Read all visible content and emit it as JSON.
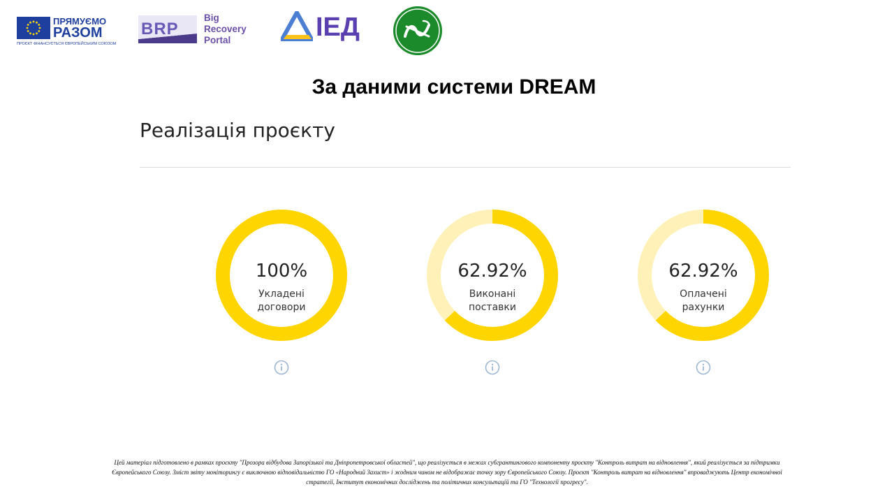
{
  "logos": {
    "eu": {
      "line1": "ПРЯМУЄМО",
      "line2": "РАЗОМ",
      "subtitle": "ПРОЄКТ ФІНАНСУЄТЬСЯ ЄВРОПЕЙСЬКИМ СОЮЗОМ"
    },
    "brp": {
      "letters": "BRP",
      "line1": "Big",
      "line2": "Recovery",
      "line3": "Portal"
    },
    "ied": {
      "letters": "ІЕД"
    }
  },
  "heading": "За даними системи DREAM",
  "section_title": "Реалізація проєкту",
  "colors": {
    "accent": "#FFD500",
    "track": "#FFF1B8",
    "info_icon": "#9DB6D3"
  },
  "metrics": [
    {
      "value": "100%",
      "label_line1": "Укладені",
      "label_line2": "договори",
      "fraction": 1.0,
      "icon": "info-icon"
    },
    {
      "value": "62.92%",
      "label_line1": "Виконані",
      "label_line2": "поставки",
      "fraction": 0.6292,
      "icon": "info-icon"
    },
    {
      "value": "62.92%",
      "label_line1": "Оплачені",
      "label_line2": "рахунки",
      "fraction": 0.6292,
      "icon": "info-icon"
    }
  ],
  "footer": {
    "line1": "Цей матеріал підготовлено в рамках проєкту \"Прозора відбудова Запорізької та Дніпропетровської областей\", що реалізується в межах субгрантингового компоненту проєкту \"Контроль витрат на відновлення\", який реалізується за підтримки",
    "line2": "Європейського Союзу. Зміст звіту моніторингу є виключною відповідальністю ГО «Народний Захист» і жодним чином не відображає точку зору Європейського Союзу. Проєкт \"Контроль витрат на відновлення\" впроваджують Центр економічної",
    "line3": "стратегії, Інститут економічних досліджень та політичних консультацій та ГО \"Технології прогресу\"."
  }
}
